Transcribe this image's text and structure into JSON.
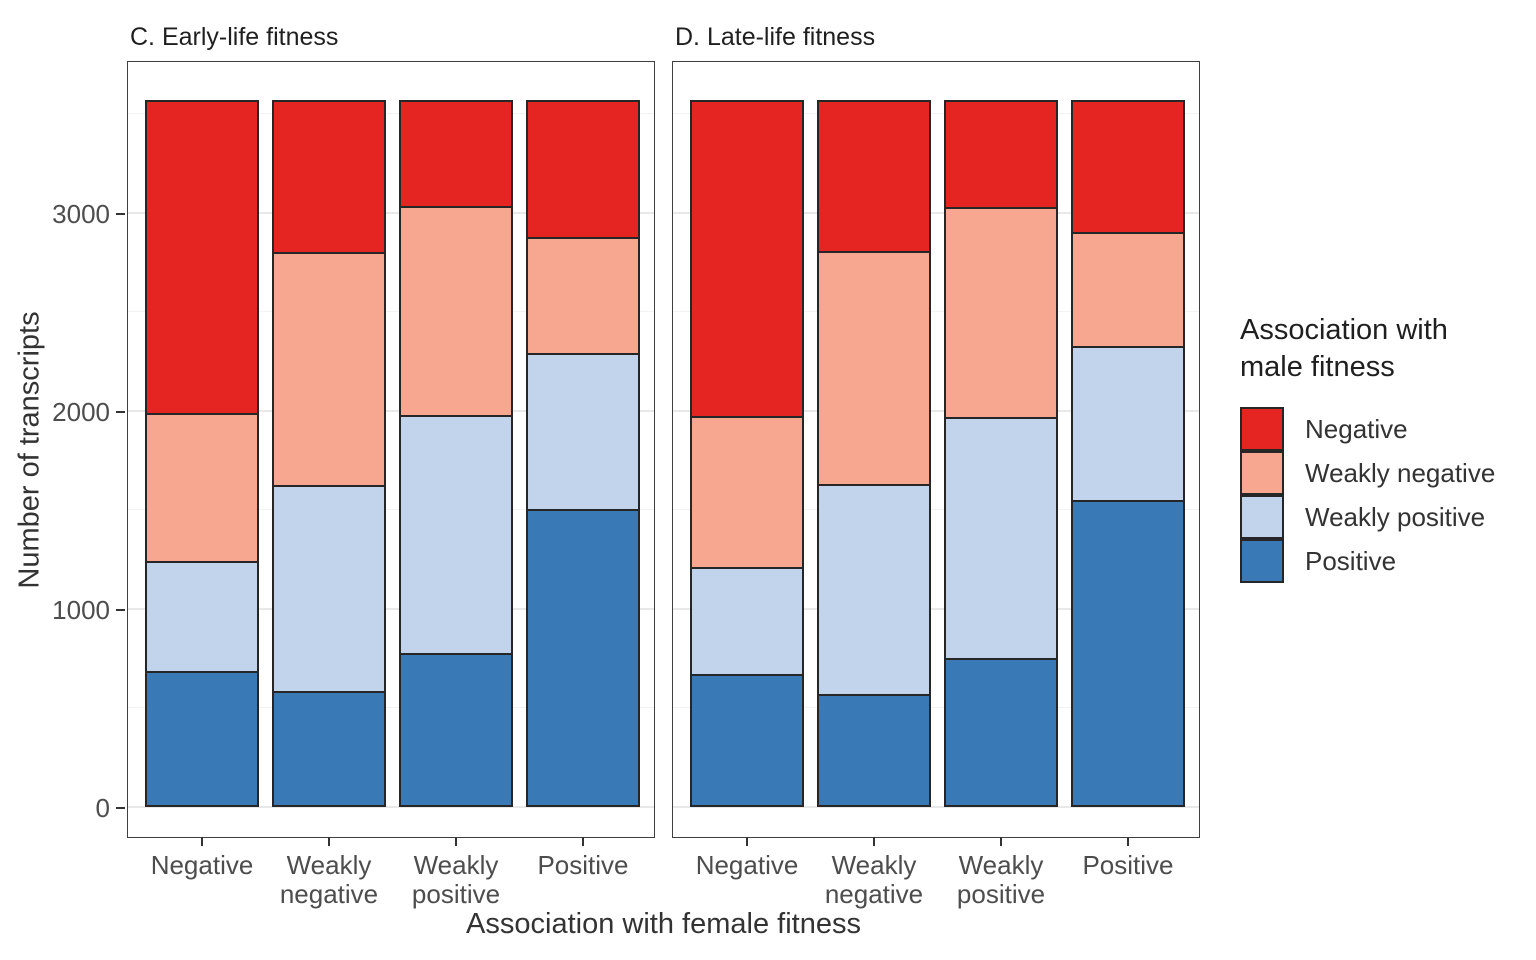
{
  "chart_data": {
    "type": "bar",
    "stacked": true,
    "xlabel": "Association with female fitness",
    "ylabel": "Number of transcripts",
    "yticks": [
      0,
      1000,
      2000,
      3000
    ],
    "minor_gridlines": [
      500,
      1500,
      2500,
      3500
    ],
    "ylim": [
      0,
      3770
    ],
    "grid": true,
    "panels": [
      {
        "title": "C. Early-life fitness",
        "categories": [
          "Negative",
          "Weakly negative",
          "Weakly positive",
          "Positive"
        ],
        "series": [
          {
            "name": "Positive",
            "color": "#3879b6",
            "values": [
              690,
              590,
              780,
              1510
            ]
          },
          {
            "name": "Weakly positive",
            "color": "#c2d4ec",
            "values": [
              555,
              1040,
              1200,
              785
            ]
          },
          {
            "name": "Weakly negative",
            "color": "#f7a78f",
            "values": [
              750,
              1175,
              1060,
              585
            ]
          },
          {
            "name": "Negative",
            "color": "#e42521",
            "values": [
              1575,
              765,
              530,
              690
            ]
          }
        ],
        "bar_totals": [
          3570,
          3570,
          3570,
          3570
        ]
      },
      {
        "title": "D. Late-life fitness",
        "categories": [
          "Negative",
          "Weakly negative",
          "Weakly positive",
          "Positive"
        ],
        "series": [
          {
            "name": "Positive",
            "color": "#3879b6",
            "values": [
              675,
              575,
              755,
              1555
            ]
          },
          {
            "name": "Weakly positive",
            "color": "#c2d4ec",
            "values": [
              540,
              1060,
              1215,
              775
            ]
          },
          {
            "name": "Weakly negative",
            "color": "#f7a78f",
            "values": [
              760,
              1175,
              1065,
              575
            ]
          },
          {
            "name": "Negative",
            "color": "#e42521",
            "values": [
              1595,
              760,
              535,
              665
            ]
          }
        ],
        "bar_totals": [
          3570,
          3570,
          3570,
          3570
        ]
      }
    ],
    "legend": {
      "title": "Association with male fitness",
      "position": "right",
      "entries": [
        "Negative",
        "Weakly negative",
        "Weakly positive",
        "Positive"
      ]
    }
  },
  "colors": {
    "negative": "#e42521",
    "weakly_negative": "#f7a78f",
    "weakly_positive": "#c2d4ec",
    "positive": "#3879b6",
    "bar_border": "#262626",
    "panel_border": "#3f3f3f",
    "major_gridline": "#e8e8e8",
    "minor_gridline": "#f3f3f3",
    "axis_text": "#4d4d4d",
    "title_text": "#333333"
  }
}
